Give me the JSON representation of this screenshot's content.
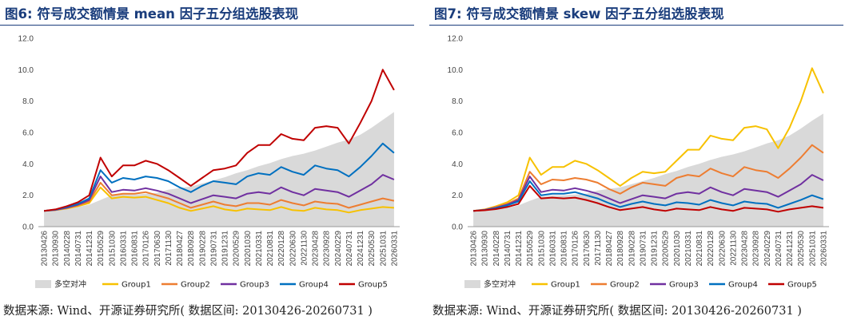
{
  "charts": [
    {
      "title": "图6:  符号成交额情景 mean 因子五分组选股表现",
      "source": "数据来源: Wind、开源证券研究所( 数据区间: 20130426-20260731 )",
      "chart_data": {
        "type": "line",
        "x": [
          "20130426",
          "20130930",
          "20140228",
          "20140731",
          "20141231",
          "20150529",
          "20151030",
          "20160331",
          "20160831",
          "20170126",
          "20170630",
          "20171130",
          "20180427",
          "20180928",
          "20190228",
          "20190731",
          "20191231",
          "20200529",
          "20201030",
          "20210331",
          "20210831",
          "20220128",
          "20220630",
          "20221130",
          "20230428",
          "20230928",
          "20240229",
          "20240731",
          "20241231",
          "20250530",
          "20251031",
          "20260331"
        ],
        "ylim": [
          0,
          12
        ],
        "yticks": [
          "0.0",
          "2.0",
          "4.0",
          "6.0",
          "8.0",
          "10.0",
          "12.0"
        ],
        "series": [
          {
            "name": "多空对冲",
            "color": "#d9d9d9",
            "kind": "area",
            "values": [
              1.0,
              1.02,
              1.12,
              1.25,
              1.4,
              1.7,
              2.0,
              2.1,
              2.05,
              2.1,
              2.15,
              2.35,
              2.45,
              2.55,
              2.75,
              2.95,
              3.15,
              3.4,
              3.6,
              3.85,
              4.05,
              4.3,
              4.5,
              4.65,
              4.85,
              5.1,
              5.35,
              5.55,
              5.85,
              6.3,
              6.8,
              7.3
            ]
          },
          {
            "name": "Group1",
            "color": "#f7c100",
            "kind": "line",
            "values": [
              1.0,
              1.05,
              1.15,
              1.3,
              1.5,
              2.5,
              1.8,
              1.9,
              1.85,
              1.9,
              1.7,
              1.5,
              1.2,
              1.0,
              1.15,
              1.3,
              1.1,
              1.0,
              1.15,
              1.1,
              1.05,
              1.25,
              1.05,
              1.0,
              1.2,
              1.1,
              1.05,
              0.9,
              1.05,
              1.15,
              1.25,
              1.2
            ]
          },
          {
            "name": "Group2",
            "color": "#ed7d31",
            "kind": "line",
            "values": [
              1.0,
              1.05,
              1.18,
              1.35,
              1.6,
              2.8,
              2.0,
              2.1,
              2.1,
              2.2,
              2.0,
              1.8,
              1.5,
              1.2,
              1.4,
              1.6,
              1.4,
              1.3,
              1.5,
              1.5,
              1.4,
              1.7,
              1.5,
              1.35,
              1.6,
              1.5,
              1.45,
              1.2,
              1.4,
              1.6,
              1.8,
              1.65
            ]
          },
          {
            "name": "Group3",
            "color": "#7030a0",
            "kind": "line",
            "values": [
              1.0,
              1.07,
              1.2,
              1.4,
              1.7,
              3.2,
              2.2,
              2.35,
              2.3,
              2.45,
              2.3,
              2.1,
              1.8,
              1.5,
              1.75,
              2.0,
              1.9,
              1.8,
              2.1,
              2.2,
              2.1,
              2.5,
              2.2,
              2.0,
              2.4,
              2.3,
              2.2,
              1.9,
              2.3,
              2.7,
              3.3,
              3.0
            ]
          },
          {
            "name": "Group4",
            "color": "#0070c0",
            "kind": "line",
            "values": [
              1.0,
              1.08,
              1.25,
              1.45,
              1.8,
              3.6,
              2.8,
              3.1,
              3.0,
              3.2,
              3.1,
              2.9,
              2.5,
              2.2,
              2.6,
              2.9,
              2.8,
              2.7,
              3.2,
              3.4,
              3.3,
              3.8,
              3.5,
              3.3,
              3.9,
              3.7,
              3.6,
              3.2,
              3.8,
              4.5,
              5.3,
              4.7
            ]
          },
          {
            "name": "Group5",
            "color": "#c00000",
            "kind": "line",
            "values": [
              1.0,
              1.1,
              1.3,
              1.55,
              2.0,
              4.4,
              3.2,
              3.9,
              3.9,
              4.2,
              4.0,
              3.6,
              3.1,
              2.6,
              3.1,
              3.6,
              3.7,
              3.9,
              4.7,
              5.2,
              5.2,
              5.9,
              5.6,
              5.5,
              6.3,
              6.4,
              6.3,
              5.3,
              6.6,
              8.0,
              10.0,
              8.7
            ]
          }
        ]
      }
    },
    {
      "title": "图7:  符号成交额情景 skew 因子五分组选股表现",
      "source": "数据来源: Wind、开源证券研究所( 数据区间: 20130426-20260731 )",
      "chart_data": {
        "type": "line",
        "x": [
          "20130426",
          "20130930",
          "20140228",
          "20140731",
          "20141231",
          "20150529",
          "20151030",
          "20160331",
          "20160831",
          "20170126",
          "20170630",
          "20171130",
          "20180427",
          "20180928",
          "20190228",
          "20190731",
          "20191231",
          "20200529",
          "20201030",
          "20210331",
          "20210831",
          "20220128",
          "20220630",
          "20221130",
          "20230428",
          "20230928",
          "20240229",
          "20240731",
          "20241231",
          "20250530",
          "20251031",
          "20260331"
        ],
        "ylim": [
          0,
          12
        ],
        "yticks": [
          "0.0",
          "2.0",
          "4.0",
          "6.0",
          "8.0",
          "10.0",
          "12.0"
        ],
        "series": [
          {
            "name": "多空对冲",
            "color": "#d9d9d9",
            "kind": "area",
            "values": [
              1.0,
              1.02,
              1.1,
              1.2,
              1.35,
              1.65,
              1.9,
              2.0,
              2.0,
              2.05,
              2.1,
              2.3,
              2.4,
              2.5,
              2.7,
              2.9,
              3.1,
              3.35,
              3.55,
              3.8,
              4.0,
              4.25,
              4.45,
              4.6,
              4.8,
              5.05,
              5.3,
              5.5,
              5.8,
              6.25,
              6.75,
              7.2
            ]
          },
          {
            "name": "Group1",
            "color": "#f7c100",
            "kind": "line",
            "values": [
              1.0,
              1.1,
              1.3,
              1.55,
              2.0,
              4.4,
              3.3,
              3.8,
              3.8,
              4.2,
              4.0,
              3.6,
              3.1,
              2.6,
              3.1,
              3.5,
              3.4,
              3.5,
              4.2,
              4.9,
              4.9,
              5.8,
              5.6,
              5.5,
              6.3,
              6.4,
              6.2,
              5.0,
              6.3,
              8.0,
              10.1,
              8.5
            ]
          },
          {
            "name": "Group2",
            "color": "#ed7d31",
            "kind": "line",
            "values": [
              1.0,
              1.08,
              1.25,
              1.45,
              1.8,
              3.5,
              2.7,
              3.0,
              2.95,
              3.1,
              3.0,
              2.8,
              2.4,
              2.1,
              2.5,
              2.8,
              2.7,
              2.6,
              3.1,
              3.3,
              3.2,
              3.7,
              3.4,
              3.2,
              3.8,
              3.6,
              3.5,
              3.1,
              3.7,
              4.4,
              5.2,
              4.7
            ]
          },
          {
            "name": "Group3",
            "color": "#7030a0",
            "kind": "line",
            "values": [
              1.0,
              1.07,
              1.2,
              1.4,
              1.7,
              3.2,
              2.2,
              2.35,
              2.3,
              2.45,
              2.3,
              2.1,
              1.8,
              1.5,
              1.75,
              2.0,
              1.9,
              1.8,
              2.1,
              2.2,
              2.1,
              2.5,
              2.2,
              2.0,
              2.4,
              2.3,
              2.2,
              1.9,
              2.3,
              2.7,
              3.3,
              2.95
            ]
          },
          {
            "name": "Group4",
            "color": "#0070c0",
            "kind": "line",
            "values": [
              1.0,
              1.05,
              1.18,
              1.35,
              1.6,
              2.9,
              2.0,
              2.1,
              2.1,
              2.2,
              2.0,
              1.8,
              1.5,
              1.25,
              1.45,
              1.6,
              1.45,
              1.35,
              1.55,
              1.5,
              1.4,
              1.7,
              1.5,
              1.35,
              1.6,
              1.5,
              1.45,
              1.2,
              1.45,
              1.7,
              2.0,
              1.75
            ]
          },
          {
            "name": "Group5",
            "color": "#c00000",
            "kind": "line",
            "values": [
              1.0,
              1.04,
              1.12,
              1.25,
              1.45,
              2.6,
              1.8,
              1.85,
              1.8,
              1.85,
              1.7,
              1.5,
              1.25,
              1.05,
              1.15,
              1.25,
              1.1,
              1.0,
              1.15,
              1.1,
              1.05,
              1.25,
              1.1,
              1.0,
              1.2,
              1.15,
              1.1,
              0.95,
              1.1,
              1.2,
              1.3,
              1.2
            ]
          }
        ]
      }
    }
  ]
}
